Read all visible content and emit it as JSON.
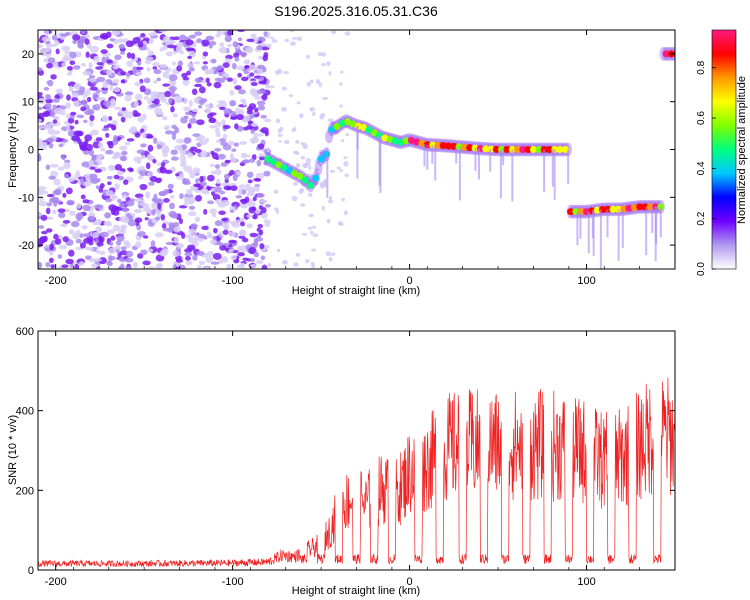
{
  "figure": {
    "title": "S196.2025.316.05.31.C36"
  },
  "chart_data": [
    {
      "type": "heatmap",
      "name": "spectrogram",
      "xlabel": "Height of straight line (km)",
      "ylabel": "Frequency (Hz)",
      "xlim": [
        -210,
        150
      ],
      "ylim": [
        -25,
        25
      ],
      "xticks": [
        -200,
        -100,
        0,
        100
      ],
      "yticks": [
        -20,
        -10,
        0,
        10,
        20
      ],
      "colorbar": {
        "label": "Normalized spectral amplitude",
        "range": [
          0,
          0.95
        ],
        "ticks": [
          "0.0",
          "0.2",
          "0.4",
          "0.6",
          "0.8"
        ],
        "tick_values": [
          0.0,
          0.2,
          0.4,
          0.6,
          0.8
        ],
        "colors": [
          "#ffffff",
          "#b09af0",
          "#7000ff",
          "#0000ff",
          "#00c8ff",
          "#00ff7f",
          "#7fff00",
          "#ffff00",
          "#ff9900",
          "#ff0000",
          "#ff1a80"
        ]
      },
      "noise_region": {
        "x": [
          -210,
          -80
        ],
        "y": [
          -25,
          25
        ]
      },
      "ridge": [
        {
          "x": -80,
          "y": -2
        },
        {
          "x": -75,
          "y": -3
        },
        {
          "x": -70,
          "y": -4
        },
        {
          "x": -65,
          "y": -5
        },
        {
          "x": -60,
          "y": -6
        },
        {
          "x": -56,
          "y": -7.5
        },
        {
          "x": -53,
          "y": -6
        },
        {
          "x": -50,
          "y": -2
        },
        {
          "x": -47,
          "y": -1
        },
        {
          "x": -45,
          "y": 4
        },
        {
          "x": -40,
          "y": 5
        },
        {
          "x": -36,
          "y": 6
        },
        {
          "x": -30,
          "y": 5
        },
        {
          "x": -25,
          "y": 4.5
        },
        {
          "x": -20,
          "y": 3.5
        },
        {
          "x": -15,
          "y": 2.5
        },
        {
          "x": -10,
          "y": 2
        },
        {
          "x": -5,
          "y": 1.5
        },
        {
          "x": 0,
          "y": 2
        },
        {
          "x": 5,
          "y": 1.5
        },
        {
          "x": 10,
          "y": 1
        },
        {
          "x": 20,
          "y": 0.8
        },
        {
          "x": 30,
          "y": 0.5
        },
        {
          "x": 40,
          "y": 0.2
        },
        {
          "x": 50,
          "y": 0
        },
        {
          "x": 60,
          "y": 0
        },
        {
          "x": 70,
          "y": 0
        },
        {
          "x": 80,
          "y": 0
        },
        {
          "x": 88,
          "y": 0
        },
        {
          "x": 90,
          "y": -13
        },
        {
          "x": 100,
          "y": -13
        },
        {
          "x": 110,
          "y": -12.5
        },
        {
          "x": 120,
          "y": -12.5
        },
        {
          "x": 130,
          "y": -12
        },
        {
          "x": 140,
          "y": -12
        },
        {
          "x": 143,
          "y": 20
        },
        {
          "x": 150,
          "y": 20
        }
      ]
    },
    {
      "type": "line",
      "name": "snr",
      "xlabel": "Height of straight line (km)",
      "ylabel": "SNR (10 * v/v)",
      "xlim": [
        -210,
        150
      ],
      "ylim": [
        0,
        600
      ],
      "xticks": [
        -200,
        -100,
        0,
        100
      ],
      "yticks": [
        0,
        200,
        400,
        600
      ],
      "series": [
        {
          "name": "SNR",
          "color": "#ee2222",
          "envelope": [
            {
              "x": -210,
              "y": 20
            },
            {
              "x": -150,
              "y": 20
            },
            {
              "x": -100,
              "y": 22
            },
            {
              "x": -80,
              "y": 25
            },
            {
              "x": -72,
              "y": 45
            },
            {
              "x": -65,
              "y": 40
            },
            {
              "x": -50,
              "y": 80
            },
            {
              "x": -45,
              "y": 120
            },
            {
              "x": -40,
              "y": 190
            },
            {
              "x": -35,
              "y": 210
            },
            {
              "x": -30,
              "y": 230
            },
            {
              "x": -25,
              "y": 200
            },
            {
              "x": -20,
              "y": 230
            },
            {
              "x": -15,
              "y": 250
            },
            {
              "x": -10,
              "y": 230
            },
            {
              "x": -5,
              "y": 250
            },
            {
              "x": 0,
              "y": 300
            },
            {
              "x": 10,
              "y": 320
            },
            {
              "x": 20,
              "y": 370
            },
            {
              "x": 30,
              "y": 380
            },
            {
              "x": 40,
              "y": 380
            },
            {
              "x": 60,
              "y": 380
            },
            {
              "x": 80,
              "y": 380
            },
            {
              "x": 100,
              "y": 360
            },
            {
              "x": 110,
              "y": 330
            },
            {
              "x": 120,
              "y": 340
            },
            {
              "x": 130,
              "y": 380
            },
            {
              "x": 140,
              "y": 420
            },
            {
              "x": 150,
              "y": 400
            }
          ],
          "dropouts": [
            -60,
            -50,
            -40,
            -30,
            -20,
            -10,
            5,
            17,
            30,
            42,
            54,
            66,
            78,
            90,
            102,
            114,
            126,
            140
          ]
        }
      ]
    }
  ]
}
